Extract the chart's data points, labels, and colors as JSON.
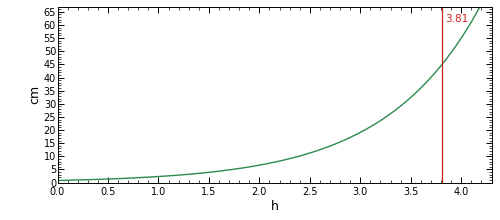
{
  "title": "",
  "xlabel": "h",
  "ylabel": "cm",
  "xlim": [
    0.0,
    4.3
  ],
  "ylim": [
    0,
    67
  ],
  "xticks": [
    0.0,
    0.5,
    1.0,
    1.5,
    2.0,
    2.5,
    3.0,
    3.5,
    4.0
  ],
  "yticks": [
    0,
    5,
    10,
    15,
    20,
    25,
    30,
    35,
    40,
    45,
    50,
    55,
    60,
    65
  ],
  "vline_x": 3.81,
  "vline_label": "3.81",
  "curve_color": "#2d8a50",
  "vline_color": "#cc2222",
  "background_color": "#ffffff",
  "curve_A": 0.8,
  "curve_k": 0.98
}
